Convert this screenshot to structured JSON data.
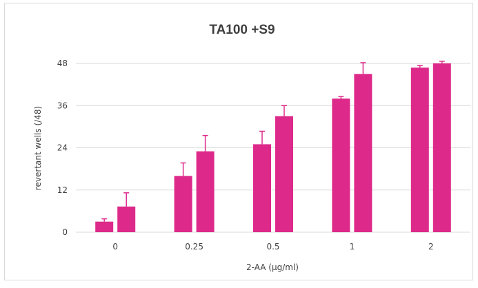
{
  "chart_data": {
    "type": "bar",
    "title": "TA100 +S9",
    "xlabel": "2-AA (µg/ml)",
    "ylabel": "revertant wells (/48)",
    "ylim": [
      0,
      48
    ],
    "yticks": [
      0,
      12,
      24,
      36,
      48
    ],
    "categories": [
      "0",
      "0.25",
      "0.5",
      "1",
      "2"
    ],
    "series": [
      {
        "values": [
          3,
          16,
          25,
          38,
          46.8
        ],
        "error_upper": [
          0.8,
          3.7,
          3.7,
          0.6,
          0.6
        ]
      },
      {
        "values": [
          7.3,
          23,
          33,
          45,
          48
        ],
        "error_upper": [
          3.9,
          4.5,
          3.0,
          3.2,
          0.6
        ]
      }
    ],
    "grid": true,
    "legend": "none",
    "colors": {
      "bar": "#dd2a8a",
      "grid": "#d9d9d9",
      "text": "#404040"
    }
  }
}
